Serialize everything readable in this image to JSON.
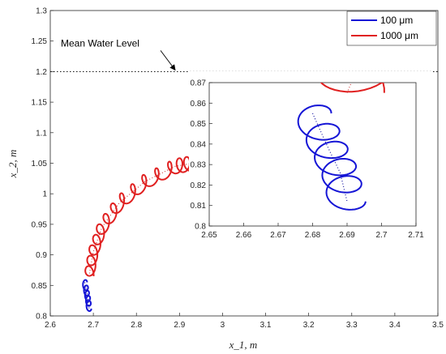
{
  "chart_data": {
    "type": "line",
    "main": {
      "xlabel": "x_1, m",
      "ylabel": "x_2, m",
      "xlim": [
        2.6,
        3.5
      ],
      "ylim": [
        0.8,
        1.3
      ],
      "xticks": [
        "2.6",
        "2.7",
        "2.8",
        "2.9",
        "3",
        "3.1",
        "3.2",
        "3.3",
        "3.4",
        "3.5"
      ],
      "yticks": [
        "0.8",
        "0.85",
        "0.9",
        "0.95",
        "1",
        "1.05",
        "1.1",
        "1.15",
        "1.2",
        "1.25",
        "1.3"
      ],
      "grid": false,
      "legend_position": "top-right"
    },
    "annotation": {
      "text": "Mean Water Level",
      "y": 1.2
    },
    "series": [
      {
        "name": "100 μm",
        "color": "#1515d6",
        "mean_path": [
          [
            2.68,
            0.855
          ],
          [
            2.684,
            0.84
          ],
          [
            2.688,
            0.826
          ],
          [
            2.69,
            0.812
          ]
        ],
        "loop_radius": 0.006,
        "loop_count": 5
      },
      {
        "name": "1000 μm",
        "color": "#e02020",
        "mean_path": [
          [
            2.69,
            0.865
          ],
          [
            2.7,
            0.905
          ],
          [
            2.72,
            0.945
          ],
          [
            2.76,
            0.985
          ],
          [
            2.82,
            1.02
          ],
          [
            2.89,
            1.045
          ],
          [
            2.93,
            1.05
          ]
        ],
        "loop_radius": 0.012,
        "loop_count": 14
      }
    ],
    "inset": {
      "xlim": [
        2.65,
        2.71
      ],
      "ylim": [
        0.8,
        0.87
      ],
      "xticks": [
        "2.65",
        "2.66",
        "2.67",
        "2.68",
        "2.69",
        "2.7",
        "2.71"
      ],
      "yticks": [
        "0.8",
        "0.81",
        "0.82",
        "0.83",
        "0.84",
        "0.85",
        "0.86",
        "0.87"
      ]
    }
  },
  "legend": {
    "items": [
      {
        "label": "100 μm",
        "color": "#1515d6"
      },
      {
        "label": "1000 μm",
        "color": "#e02020"
      }
    ]
  }
}
